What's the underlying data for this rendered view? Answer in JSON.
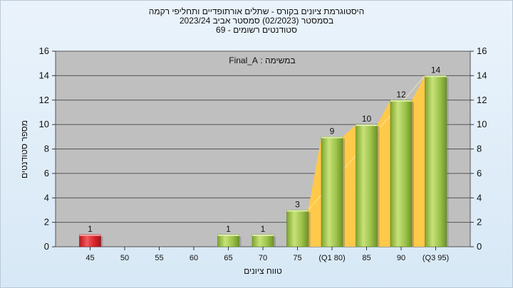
{
  "titles": {
    "line1": "היסטוגרמת ציונים בקורס - שתלים אורתופדיים ותחליפי רקמה",
    "line2": "בסמסטר  (02/2023)  סמסטר אביב 2023/24",
    "line3": "סטודנטים רשומים - 69"
  },
  "chart_data": {
    "type": "bar",
    "ylabel": "מספר סטודנטים",
    "xlabel": "טווח ציונים",
    "ylim": [
      0,
      16
    ],
    "yticks": [
      0,
      2,
      4,
      6,
      8,
      10,
      12,
      14,
      16
    ],
    "grid": true,
    "annotation": "במשימה : Final_A",
    "categories": [
      "45",
      "50",
      "55",
      "60",
      "65",
      "70",
      "75",
      "(Q1 80)",
      "85",
      "90",
      "(Q3 95)"
    ],
    "values": [
      1,
      0,
      0,
      0,
      1,
      1,
      3,
      9,
      10,
      12,
      14
    ],
    "data_labels": [
      "1",
      "",
      "",
      "",
      "1",
      "1",
      "3",
      "9",
      "10",
      "12",
      "14"
    ],
    "highlight_color": "#d9262b",
    "bar_color": "#9cc24a",
    "area_color": "#ffc94a",
    "plot_background": "#bfbfbf"
  }
}
